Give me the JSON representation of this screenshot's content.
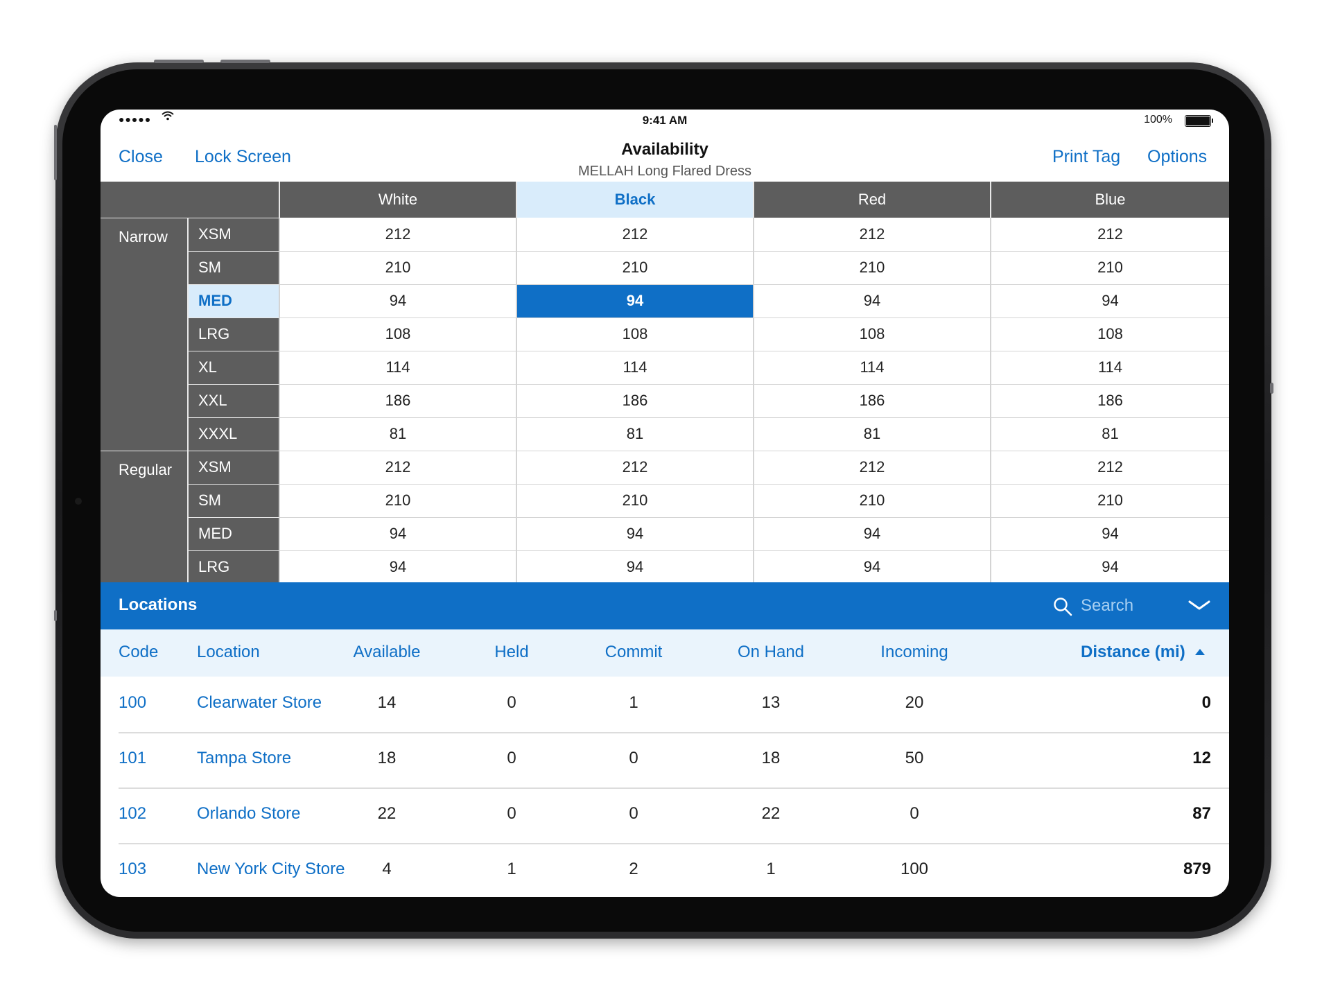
{
  "status_bar": {
    "signal": "●●●●●",
    "time": "9:41 AM",
    "battery_percent": "100%"
  },
  "nav": {
    "close_label": "Close",
    "lock_label": "Lock Screen",
    "title": "Availability",
    "subtitle": "MELLAH Long Flared Dress",
    "print_label": "Print Tag",
    "options_label": "Options"
  },
  "matrix": {
    "colors": [
      "White",
      "Black",
      "Red",
      "Blue"
    ],
    "selected_color": "Black",
    "groups": [
      {
        "name": "Narrow",
        "rows": [
          {
            "size": "XSM",
            "values": [
              "212",
              "212",
              "212",
              "212"
            ]
          },
          {
            "size": "SM",
            "values": [
              "210",
              "210",
              "210",
              "210"
            ]
          },
          {
            "size": "MED",
            "values": [
              "94",
              "94",
              "94",
              "94"
            ],
            "selected": true
          },
          {
            "size": "LRG",
            "values": [
              "108",
              "108",
              "108",
              "108"
            ]
          },
          {
            "size": "XL",
            "values": [
              "114",
              "114",
              "114",
              "114"
            ]
          },
          {
            "size": "XXL",
            "values": [
              "186",
              "186",
              "186",
              "186"
            ]
          },
          {
            "size": "XXXL",
            "values": [
              "81",
              "81",
              "81",
              "81"
            ]
          }
        ]
      },
      {
        "name": "Regular",
        "rows": [
          {
            "size": "XSM",
            "values": [
              "212",
              "212",
              "212",
              "212"
            ]
          },
          {
            "size": "SM",
            "values": [
              "210",
              "210",
              "210",
              "210"
            ]
          },
          {
            "size": "MED",
            "values": [
              "94",
              "94",
              "94",
              "94"
            ]
          },
          {
            "size": "LRG",
            "values": [
              "94",
              "94",
              "94",
              "94"
            ]
          }
        ]
      }
    ]
  },
  "locations": {
    "title": "Locations",
    "search_placeholder": "Search",
    "columns": {
      "code": "Code",
      "location": "Location",
      "available": "Available",
      "held": "Held",
      "commit": "Commit",
      "on_hand": "On Hand",
      "incoming": "Incoming",
      "distance": "Distance (mi)"
    },
    "sort_direction": "ascending",
    "rows": [
      {
        "code": "100",
        "location": "Clearwater Store",
        "available": "14",
        "held": "0",
        "commit": "1",
        "on_hand": "13",
        "incoming": "20",
        "distance": "0"
      },
      {
        "code": "101",
        "location": "Tampa Store",
        "available": "18",
        "held": "0",
        "commit": "0",
        "on_hand": "18",
        "incoming": "50",
        "distance": "12"
      },
      {
        "code": "102",
        "location": "Orlando Store",
        "available": "22",
        "held": "0",
        "commit": "0",
        "on_hand": "22",
        "incoming": "0",
        "distance": "87"
      },
      {
        "code": "103",
        "location": "New York City Store",
        "available": "4",
        "held": "1",
        "commit": "2",
        "on_hand": "1",
        "incoming": "100",
        "distance": "879"
      }
    ]
  },
  "theme": {
    "accent": "#0f6fc6",
    "header_gray": "#5d5d5d",
    "selected_light": "#d9ecfb"
  }
}
